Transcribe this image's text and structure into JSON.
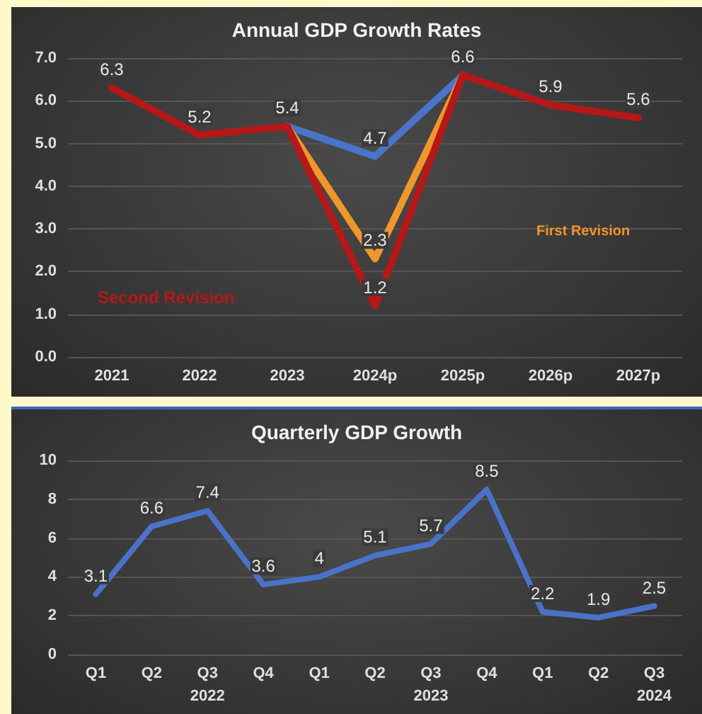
{
  "chart_data": [
    {
      "type": "line",
      "title": "Annual GDP Growth Rates",
      "categories": [
        "2021",
        "2022",
        "2023",
        "2024p",
        "2025p",
        "2026p",
        "2027p"
      ],
      "series": [
        {
          "color": "#4a74c9",
          "values": [
            null,
            null,
            5.4,
            4.7,
            6.6,
            null,
            null
          ],
          "value_labels": [
            null,
            null,
            null,
            "4.7",
            null,
            null,
            null
          ]
        },
        {
          "name": "First Revision",
          "color": "#f0962a",
          "values": [
            null,
            null,
            5.4,
            2.3,
            6.6,
            null,
            null
          ],
          "value_labels": [
            null,
            null,
            null,
            "2.3",
            null,
            null,
            null
          ]
        },
        {
          "name": "Second Revision",
          "color": "#b51818",
          "values": [
            6.3,
            5.2,
            5.4,
            1.2,
            6.6,
            5.9,
            5.6
          ],
          "value_labels": [
            "6.3",
            "5.2",
            "5.4",
            "1.2",
            "6.6",
            "5.9",
            "5.6"
          ]
        }
      ],
      "ylim": [
        0,
        7
      ],
      "yticks": [
        {
          "value": 0,
          "label": "0.0"
        },
        {
          "value": 1,
          "label": "1.0"
        },
        {
          "value": 2,
          "label": "2.0"
        },
        {
          "value": 3,
          "label": "3.0"
        },
        {
          "value": 4,
          "label": "4.0"
        },
        {
          "value": 5,
          "label": "5.0"
        },
        {
          "value": 6,
          "label": "6.0"
        },
        {
          "value": 7,
          "label": "7.0"
        }
      ],
      "grid": "y",
      "legend": false,
      "marker": "none",
      "line_style": "solid"
    },
    {
      "type": "line",
      "title": "Quarterly GDP Growth",
      "categories": [
        "Q1",
        "Q2",
        "Q3",
        "Q4",
        "Q1",
        "Q2",
        "Q3",
        "Q4",
        "Q1",
        "Q2",
        "Q3"
      ],
      "series": [
        {
          "color": "#4a72c8",
          "values": [
            3.1,
            6.6,
            7.4,
            3.6,
            4,
            5.1,
            5.7,
            8.5,
            2.2,
            1.9,
            2.5
          ]
        }
      ],
      "annotations": [
        "2022",
        "2023",
        "2024"
      ],
      "ylim": [
        0,
        10
      ],
      "yticks": [
        0,
        2,
        4,
        6,
        8,
        10
      ],
      "grid": "y",
      "legend": false,
      "marker": "none",
      "line_style": "solid",
      "data_labels": true
    }
  ]
}
